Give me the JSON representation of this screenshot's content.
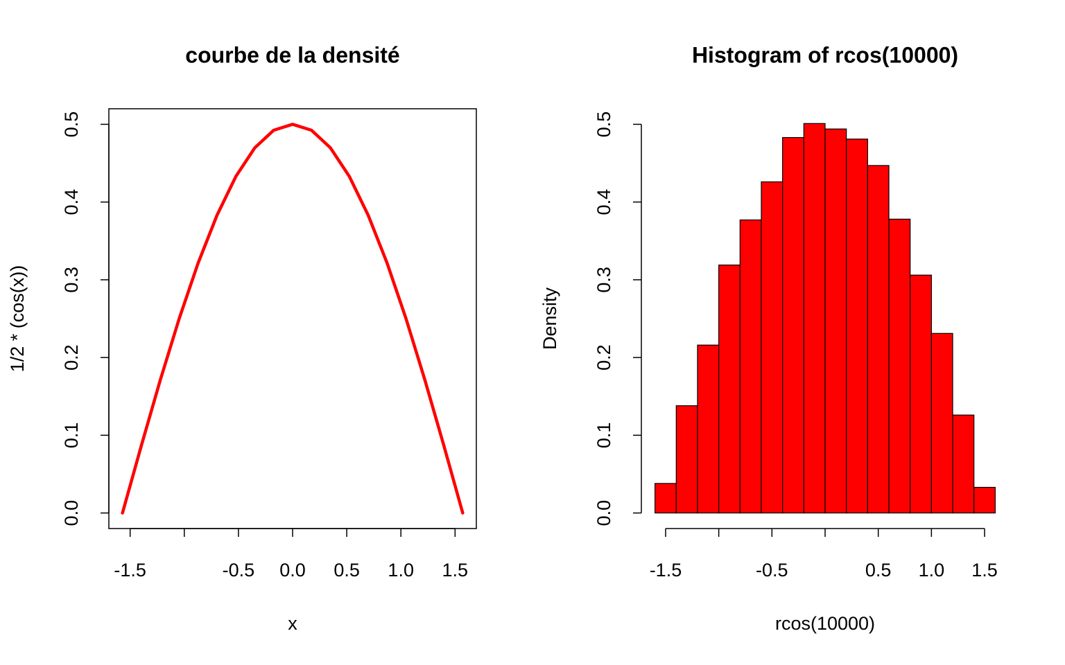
{
  "chart_data": [
    {
      "type": "line",
      "title": "courbe de la densité",
      "xlabel": "x",
      "ylabel": "1/2 * (cos(x))",
      "x": [
        -1.5708,
        -1.3963,
        -1.2217,
        -1.0472,
        -0.8727,
        -0.6981,
        -0.5236,
        -0.3491,
        -0.1745,
        0,
        0.1745,
        0.3491,
        0.5236,
        0.6981,
        0.8727,
        1.0472,
        1.2217,
        1.3963,
        1.5708
      ],
      "series": [
        {
          "name": "1/2 * (cos(x))",
          "color": "#ff0000",
          "values": [
            0,
            0.0868,
            0.171,
            0.25,
            0.3214,
            0.383,
            0.433,
            0.4698,
            0.4924,
            0.5,
            0.4924,
            0.4698,
            0.433,
            0.383,
            0.3214,
            0.25,
            0.171,
            0.0868,
            0
          ]
        }
      ],
      "xlim": [
        -1.6965,
        1.6965
      ],
      "xticks": [
        -1.5,
        {
          "value": -1.0,
          "label": null
        },
        -0.5,
        {
          "value": 0,
          "label": "0.0"
        },
        0.5,
        {
          "value": 1.0,
          "label": "1.0"
        },
        1.5
      ],
      "ylim": [
        -0.02,
        0.52
      ],
      "yticks": [
        {
          "value": 0,
          "label": "0.0"
        },
        0.1,
        0.2,
        0.3,
        0.4,
        0.5
      ],
      "box": true
    },
    {
      "type": "histogram",
      "title": "Histogram of rcos(10000)",
      "xlabel": "rcos(10000)",
      "ylabel": "Density",
      "bins": [
        -1.6,
        -1.4,
        -1.2,
        -1.0,
        -0.8,
        -0.6,
        -0.4,
        -0.2,
        0,
        0.2,
        0.4,
        0.6,
        0.8,
        1.0,
        1.2,
        1.4,
        1.6
      ],
      "values": [
        0.038,
        0.138,
        0.216,
        0.319,
        0.377,
        0.426,
        0.483,
        0.501,
        0.494,
        0.481,
        0.447,
        0.378,
        0.306,
        0.231,
        0.126,
        0.033
      ],
      "color": "#ff0000",
      "xlim": [
        -1.728,
        1.728
      ],
      "xticks": [
        -1.5,
        {
          "value": -1.0,
          "label": null
        },
        -0.5,
        {
          "value": 0,
          "label": null
        },
        0.5,
        {
          "value": 1.0,
          "label": "1.0"
        },
        1.5
      ],
      "ylim": [
        -0.02,
        0.52
      ],
      "yticks": [
        {
          "value": 0,
          "label": "0.0"
        },
        0.1,
        0.2,
        0.3,
        0.4,
        0.5
      ],
      "box": false
    }
  ]
}
